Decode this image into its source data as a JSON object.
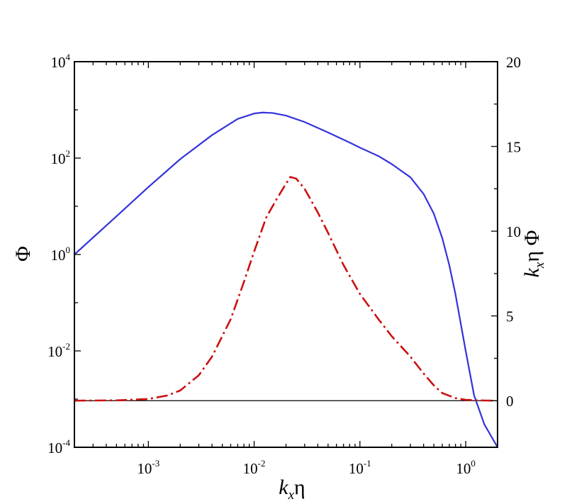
{
  "chart_data": {
    "type": "line",
    "x_scale": "log",
    "xlim": [
      0.0002,
      2.0
    ],
    "y_left": {
      "scale": "log",
      "ylim": [
        0.0001,
        10000
      ]
    },
    "y_right": {
      "scale": "linear",
      "ylim": [
        -2.75,
        20
      ]
    },
    "grid": false,
    "legend": "none",
    "xlabel": {
      "base": "k",
      "sub": "x",
      "tail": "η"
    },
    "ylabel_left": "Φ",
    "ylabel_right": {
      "base": "k",
      "sub": "x",
      "tail": "η Φ"
    },
    "x_ticks": [
      {
        "value": 0.001,
        "base": "10",
        "exp": "-3"
      },
      {
        "value": 0.01,
        "base": "10",
        "exp": "-2"
      },
      {
        "value": 0.1,
        "base": "10",
        "exp": "-1"
      },
      {
        "value": 1,
        "base": "10",
        "exp": "0"
      }
    ],
    "y_left_ticks": [
      {
        "value": 0.0001,
        "base": "10",
        "exp": "-4"
      },
      {
        "value": 0.01,
        "base": "10",
        "exp": "-2"
      },
      {
        "value": 1,
        "base": "10",
        "exp": "0"
      },
      {
        "value": 100,
        "base": "10",
        "exp": "2"
      },
      {
        "value": 10000,
        "base": "10",
        "exp": "4"
      }
    ],
    "y_right_ticks": [
      {
        "value": 0,
        "label": "0"
      },
      {
        "value": 5,
        "label": "5"
      },
      {
        "value": 10,
        "label": "10"
      },
      {
        "value": 15,
        "label": "15"
      },
      {
        "value": 20,
        "label": "20"
      }
    ],
    "reference_line": {
      "axis": "right",
      "y": 0,
      "color": "#000000"
    },
    "series": [
      {
        "axis": "left",
        "color": "#3333dd",
        "style": "solid",
        "points": [
          [
            0.0002,
            1.0
          ],
          [
            0.0005,
            6.2
          ],
          [
            0.001,
            25
          ],
          [
            0.002,
            95
          ],
          [
            0.004,
            300
          ],
          [
            0.007,
            650
          ],
          [
            0.01,
            840
          ],
          [
            0.012,
            880
          ],
          [
            0.015,
            860
          ],
          [
            0.02,
            760
          ],
          [
            0.03,
            560
          ],
          [
            0.05,
            340
          ],
          [
            0.08,
            210
          ],
          [
            0.1,
            165
          ],
          [
            0.15,
            110
          ],
          [
            0.2,
            75
          ],
          [
            0.3,
            40
          ],
          [
            0.4,
            18
          ],
          [
            0.5,
            7
          ],
          [
            0.6,
            2.2
          ],
          [
            0.7,
            0.6
          ],
          [
            0.8,
            0.15
          ],
          [
            1.0,
            0.01
          ],
          [
            1.2,
            0.0012
          ],
          [
            1.5,
            0.0003
          ],
          [
            2.0,
            0.0001
          ]
        ]
      },
      {
        "axis": "right",
        "color": "#cc1111",
        "style": "dash-dot",
        "points": [
          [
            0.0002,
            0.0
          ],
          [
            0.0005,
            0.02
          ],
          [
            0.001,
            0.1
          ],
          [
            0.0015,
            0.3
          ],
          [
            0.002,
            0.6
          ],
          [
            0.003,
            1.5
          ],
          [
            0.004,
            2.6
          ],
          [
            0.006,
            4.8
          ],
          [
            0.008,
            7.0
          ],
          [
            0.01,
            8.8
          ],
          [
            0.013,
            10.8
          ],
          [
            0.016,
            11.8
          ],
          [
            0.02,
            12.8
          ],
          [
            0.022,
            13.2
          ],
          [
            0.025,
            13.1
          ],
          [
            0.03,
            12.5
          ],
          [
            0.04,
            11.1
          ],
          [
            0.05,
            9.9
          ],
          [
            0.07,
            8.0
          ],
          [
            0.1,
            6.3
          ],
          [
            0.15,
            4.8
          ],
          [
            0.2,
            3.8
          ],
          [
            0.3,
            2.6
          ],
          [
            0.4,
            1.6
          ],
          [
            0.5,
            0.9
          ],
          [
            0.6,
            0.45
          ],
          [
            0.8,
            0.15
          ],
          [
            1.0,
            0.05
          ],
          [
            1.5,
            0.01
          ],
          [
            1.8,
            0.0
          ]
        ]
      }
    ]
  }
}
